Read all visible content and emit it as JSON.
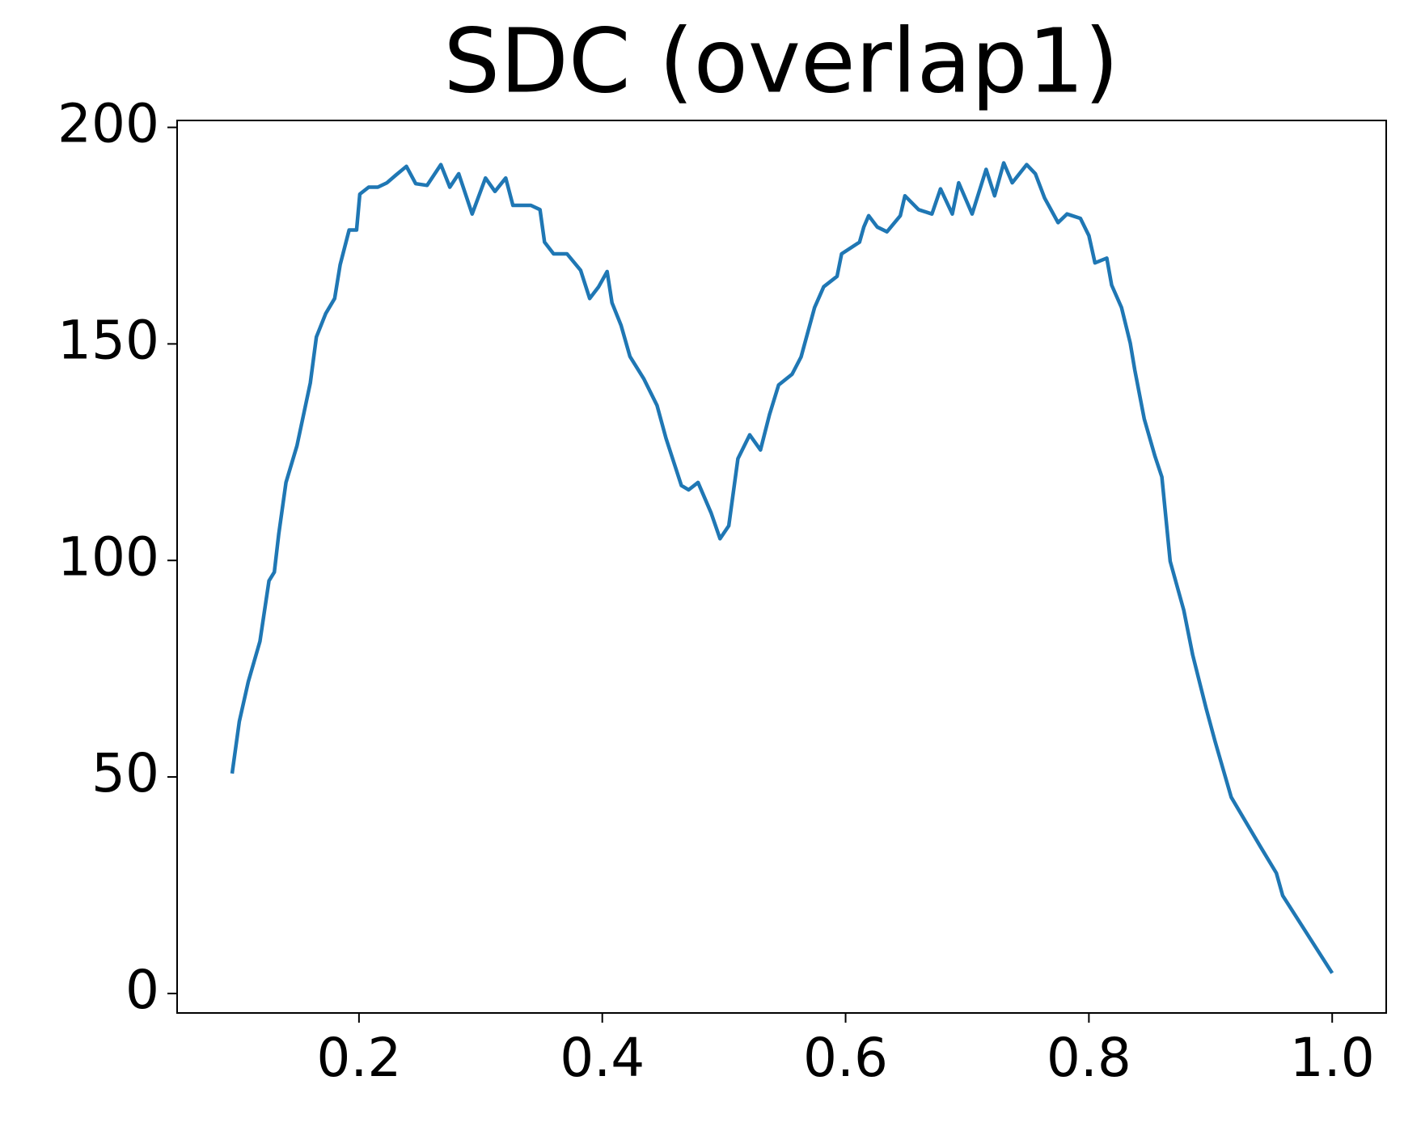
{
  "chart_data": {
    "type": "line",
    "title": "SDC (overlap1)",
    "x": [
      0.0957,
      0.1016,
      0.109,
      0.1186,
      0.126,
      0.1304,
      0.134,
      0.14,
      0.149,
      0.16,
      0.165,
      0.1726,
      0.18,
      0.1845,
      0.1919,
      0.198,
      0.2007,
      0.208,
      0.2155,
      0.223,
      0.2304,
      0.239,
      0.2466,
      0.256,
      0.2673,
      0.2747,
      0.282,
      0.293,
      0.304,
      0.3118,
      0.3206,
      0.3265,
      0.3413,
      0.3488,
      0.3525,
      0.36,
      0.371,
      0.3822,
      0.3896,
      0.397,
      0.404,
      0.408,
      0.4154,
      0.4227,
      0.434,
      0.445,
      0.4524,
      0.465,
      0.471,
      0.4787,
      0.4894,
      0.4968,
      0.504,
      0.5115,
      0.5212,
      0.53,
      0.5375,
      0.5449,
      0.556,
      0.5634,
      0.5745,
      0.582,
      0.593,
      0.5967,
      0.6115,
      0.615,
      0.619,
      0.626,
      0.634,
      0.645,
      0.6488,
      0.66,
      0.671,
      0.678,
      0.6877,
      0.693,
      0.704,
      0.7155,
      0.7225,
      0.73,
      0.737,
      0.7488,
      0.756,
      0.7636,
      0.7747,
      0.782,
      0.793,
      0.8,
      0.805,
      0.8147,
      0.8187,
      0.8268,
      0.834,
      0.8377,
      0.8455,
      0.8544,
      0.86,
      0.8668,
      0.878,
      0.8853,
      0.8964,
      0.9037,
      0.917,
      0.9408,
      0.9541,
      0.9593,
      1.0
    ],
    "values": [
      50.8,
      62.8,
      72,
      81.3,
      95.3,
      97.3,
      106,
      118,
      126.5,
      141,
      151.6,
      157,
      160.5,
      168.3,
      176.3,
      176.3,
      184.6,
      186.2,
      186.2,
      187.2,
      189,
      191,
      187,
      186.6,
      191.4,
      186.2,
      189.3,
      180,
      188.3,
      185.2,
      188.3,
      182,
      182,
      181,
      173.5,
      170.8,
      170.8,
      167,
      160.5,
      163.2,
      166.7,
      159.5,
      154.3,
      147.1,
      142,
      135.8,
      128.2,
      117.3,
      116.3,
      118,
      111,
      105,
      108,
      123.5,
      129,
      125.5,
      133.7,
      140.5,
      143,
      147,
      158.4,
      163.2,
      165.6,
      170.8,
      173.5,
      177,
      179.6,
      177,
      175.9,
      179.6,
      184.2,
      181,
      180,
      185.8,
      180,
      187.2,
      180,
      190.3,
      184.2,
      191.8,
      187.2,
      191.4,
      189.3,
      183.7,
      178,
      180,
      179,
      175,
      168.7,
      169.8,
      163.6,
      158.4,
      150.2,
      144,
      132.7,
      124,
      119.3,
      99.8,
      88.5,
      78.2,
      65.8,
      58.2,
      45.3,
      34,
      27.8,
      22.6,
      4.7
    ],
    "color": "#1f77b4",
    "xlim": [
      0.0505,
      1.0444
    ],
    "ylim": [
      -4.5,
      201.6
    ],
    "xticks": [
      0.2,
      0.4,
      0.6,
      0.8,
      {
        "value": 1,
        "label": "1.0"
      }
    ],
    "yticks": [
      0,
      50,
      100,
      150,
      200
    ],
    "grid": false
  }
}
